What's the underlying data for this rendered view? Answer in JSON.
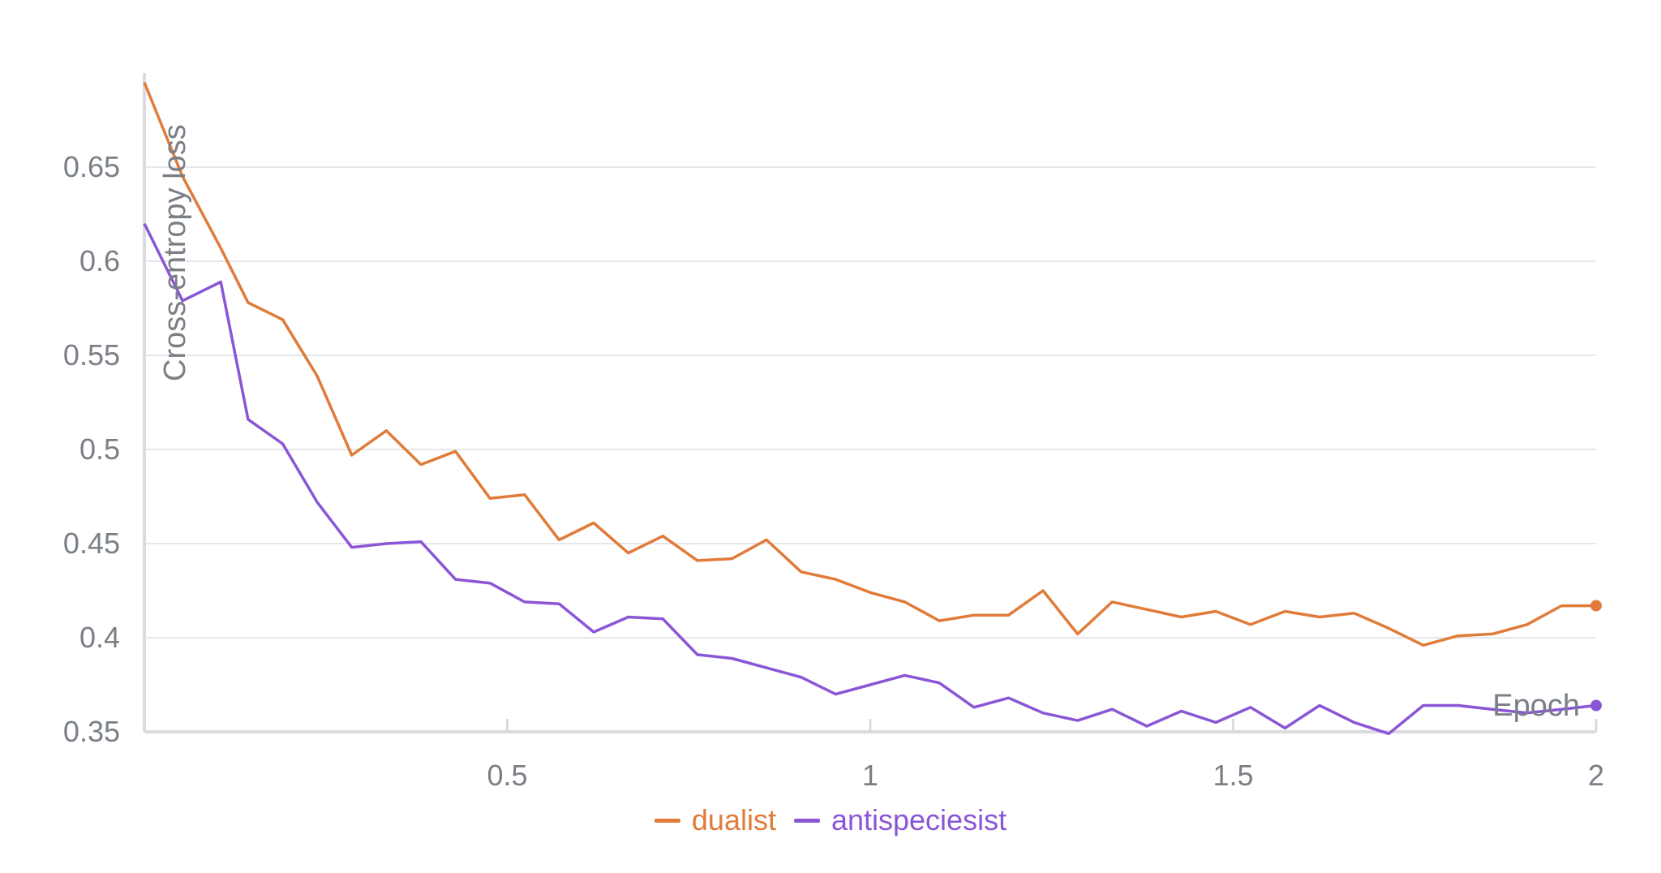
{
  "chart_data": {
    "type": "line",
    "xlabel": "Epoch",
    "ylabel": "Cross-entropy loss",
    "xlim": [
      0.0,
      2.0
    ],
    "ylim": [
      0.35,
      0.7
    ],
    "x_ticks": [
      {
        "value": 0.5,
        "label": "0.5"
      },
      {
        "value": 1,
        "label": "1"
      },
      {
        "value": 1.5,
        "label": "1.5"
      },
      {
        "value": 2,
        "label": "2"
      }
    ],
    "y_ticks": [
      {
        "value": 0.35,
        "label": "0.35"
      },
      {
        "value": 0.4,
        "label": "0.4"
      },
      {
        "value": 0.45,
        "label": "0.45"
      },
      {
        "value": 0.5,
        "label": "0.5"
      },
      {
        "value": 0.55,
        "label": "0.55"
      },
      {
        "value": 0.6,
        "label": "0.6"
      },
      {
        "value": 0.65,
        "label": "0.65"
      }
    ],
    "grid": "horizontal",
    "legend_position": "bottom-center",
    "x": [
      0.0,
      0.0526,
      0.1053,
      0.1429,
      0.1905,
      0.2381,
      0.2857,
      0.3333,
      0.381,
      0.4286,
      0.4762,
      0.5238,
      0.5714,
      0.619,
      0.6667,
      0.7143,
      0.7619,
      0.8095,
      0.8571,
      0.9048,
      0.9524,
      1.0,
      1.0476,
      1.0952,
      1.1429,
      1.1905,
      1.2381,
      1.2857,
      1.3333,
      1.381,
      1.4286,
      1.4762,
      1.5238,
      1.5714,
      1.619,
      1.6667,
      1.7143,
      1.7619,
      1.8095,
      1.8571,
      1.9048,
      1.9524,
      2.0
    ],
    "series": [
      {
        "name": "dualist",
        "color": "#e07b39",
        "values": [
          0.695,
          0.645,
          0.607,
          0.578,
          0.569,
          0.539,
          0.497,
          0.51,
          0.492,
          0.499,
          0.474,
          0.476,
          0.452,
          0.461,
          0.445,
          0.454,
          0.441,
          0.442,
          0.452,
          0.435,
          0.431,
          0.424,
          0.419,
          0.409,
          0.412,
          0.412,
          0.425,
          0.402,
          0.419,
          0.415,
          0.411,
          0.414,
          0.407,
          0.414,
          0.411,
          0.413,
          0.405,
          0.396,
          0.401,
          0.402,
          0.407,
          0.417,
          0.417
        ]
      },
      {
        "name": "antispeciesist",
        "color": "#8a56d6",
        "values": [
          0.62,
          0.579,
          0.589,
          0.516,
          0.503,
          0.472,
          0.448,
          0.45,
          0.451,
          0.431,
          0.429,
          0.419,
          0.418,
          0.403,
          0.411,
          0.41,
          0.391,
          0.389,
          0.384,
          0.379,
          0.37,
          0.375,
          0.38,
          0.376,
          0.363,
          0.368,
          0.36,
          0.356,
          0.362,
          0.353,
          0.361,
          0.355,
          0.363,
          0.352,
          0.364,
          0.355,
          0.349,
          0.364,
          0.364,
          0.362,
          0.36,
          0.362,
          0.364
        ]
      }
    ]
  }
}
